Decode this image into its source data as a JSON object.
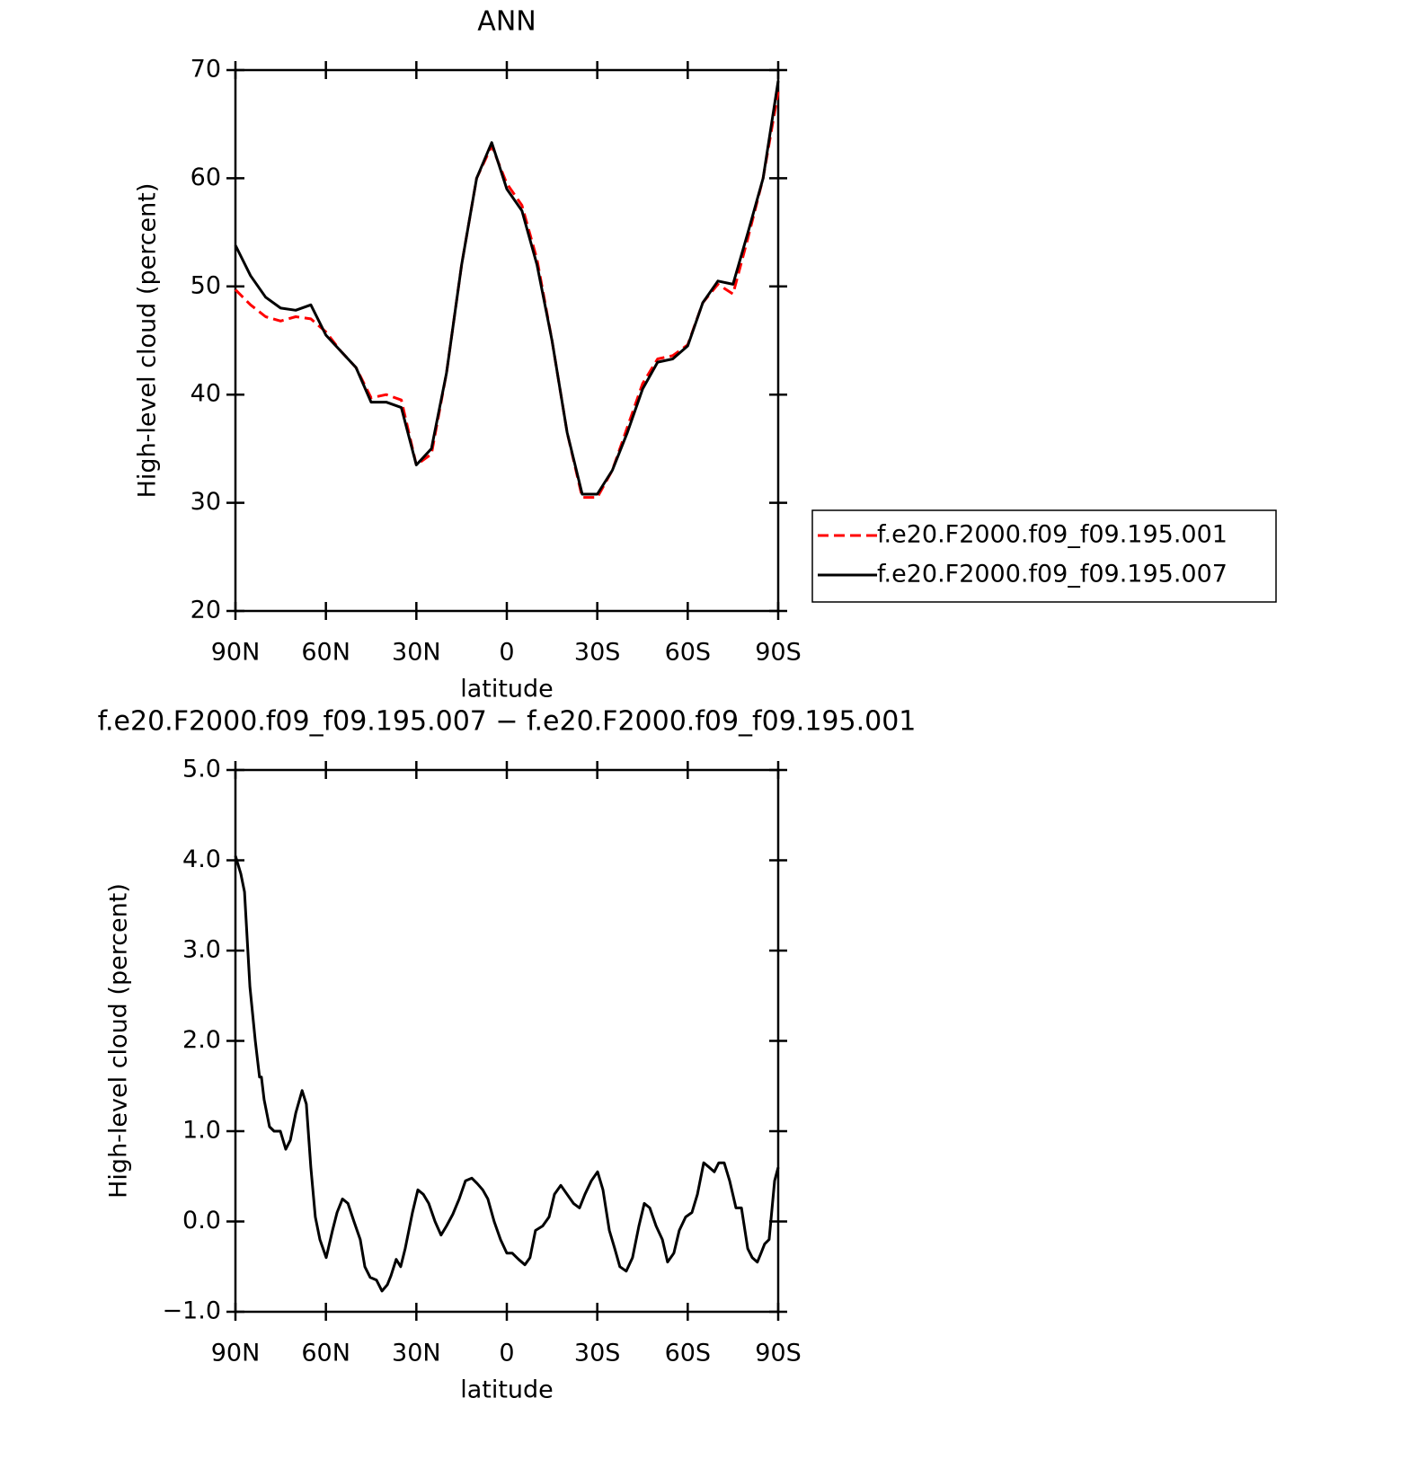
{
  "chart_data": [
    {
      "type": "line",
      "title": "ANN",
      "xlabel": "latitude",
      "ylabel": "High-level cloud (percent)",
      "x": [
        90,
        85,
        80,
        75,
        70,
        65,
        60,
        55,
        50,
        45,
        40,
        35,
        30,
        25,
        20,
        15,
        10,
        5,
        0,
        -5,
        -10,
        -15,
        -20,
        -25,
        -30,
        -35,
        -40,
        -45,
        -50,
        -55,
        -60,
        -65,
        -70,
        -75,
        -80,
        -85,
        -90
      ],
      "series": [
        {
          "name": "f.e20.F2000.f09_f09.195.001",
          "color": "#ff0000",
          "dash": true,
          "values": [
            49.7,
            48.3,
            47.2,
            46.8,
            47.2,
            47,
            45.8,
            44,
            42.5,
            39.7,
            40,
            39.5,
            33.5,
            34.5,
            42,
            52,
            60,
            63,
            59.5,
            57.5,
            52.5,
            45,
            36.5,
            30.5,
            30.5,
            33,
            37,
            41,
            43.3,
            43.6,
            44.6,
            48.5,
            50.2,
            49.3,
            54.5,
            60,
            68
          ]
        },
        {
          "name": "f.e20.F2000.f09_f09.195.007",
          "color": "#000000",
          "dash": false,
          "values": [
            53.8,
            51,
            49,
            48,
            47.8,
            48.3,
            45.5,
            44,
            42.5,
            39.3,
            39.3,
            38.8,
            33.5,
            35,
            42,
            52,
            60,
            63.3,
            59,
            57,
            52,
            45,
            36.5,
            30.8,
            30.8,
            33,
            36.5,
            40.5,
            43,
            43.3,
            44.5,
            48.5,
            50.5,
            50.2,
            55,
            60,
            69
          ]
        }
      ],
      "xlim": [
        90,
        -90
      ],
      "xticks": [
        {
          "value": 90,
          "label": "90N"
        },
        {
          "value": 60,
          "label": "60N"
        },
        {
          "value": 30,
          "label": "30N"
        },
        0,
        {
          "value": -30,
          "label": "30S"
        },
        {
          "value": -60,
          "label": "60S"
        },
        {
          "value": -90,
          "label": "90S"
        }
      ],
      "ylim": [
        20,
        70
      ],
      "yticks": [
        20,
        30,
        40,
        50,
        60,
        70
      ],
      "legend": "right"
    },
    {
      "type": "line",
      "title": "f.e20.F2000.f09_f09.195.007 − f.e20.F2000.f09_f09.195.001",
      "xlabel": "latitude",
      "ylabel": "High-level cloud (percent)",
      "x": [
        90,
        88.2,
        87,
        85.2,
        83.4,
        82,
        81.4,
        80.5,
        78.7,
        77.2,
        75.1,
        73.3,
        71.8,
        70,
        67.9,
        66.5,
        65,
        63.5,
        62,
        59.9,
        57.8,
        56.3,
        54.5,
        52.7,
        50.7,
        48.6,
        47.1,
        45.3,
        43.2,
        41.4,
        39.6,
        38.4,
        36.7,
        35.2,
        33.7,
        31.3,
        29.5,
        27.7,
        25.9,
        23.8,
        21.8,
        20,
        17.9,
        15.8,
        13.7,
        11.6,
        9.8,
        8,
        6.3,
        4.2,
        2.1,
        0,
        -1.8,
        -3.9,
        -6,
        -7.7,
        -9.5,
        -11.9,
        -14,
        -15.8,
        -17.9,
        -20,
        -22.1,
        -24.1,
        -25.9,
        -28,
        -30.1,
        -31.9,
        -34,
        -35.8,
        -37.5,
        -39.6,
        -41.7,
        -43.8,
        -45.6,
        -47.4,
        -49.5,
        -51.6,
        -53.3,
        -55.4,
        -57.2,
        -59.3,
        -61.4,
        -63.2,
        -65.3,
        -67.1,
        -68.8,
        -70.3,
        -72.1,
        -73.9,
        -76,
        -77.8,
        -79.9,
        -81.4,
        -83.1,
        -84.3,
        -85.5,
        -87,
        -88.8,
        -90
      ],
      "series": [
        {
          "color": "#000000",
          "dash": false,
          "values": [
            4.05,
            3.85,
            3.65,
            2.6,
            2,
            1.6,
            1.6,
            1.35,
            1.05,
            1,
            1,
            0.8,
            0.9,
            1.2,
            1.45,
            1.3,
            0.6,
            0.05,
            -0.2,
            -0.4,
            -0.1,
            0.1,
            0.25,
            0.2,
            0,
            -0.2,
            -0.5,
            -0.62,
            -0.65,
            -0.77,
            -0.7,
            -0.6,
            -0.42,
            -0.5,
            -0.3,
            0.1,
            0.35,
            0.3,
            0.2,
            0,
            -0.15,
            -0.05,
            0.08,
            0.25,
            0.45,
            0.48,
            0.42,
            0.35,
            0.25,
            0,
            -0.2,
            -0.35,
            -0.35,
            -0.42,
            -0.48,
            -0.4,
            -0.1,
            -0.05,
            0.05,
            0.3,
            0.4,
            0.3,
            0.2,
            0.15,
            0.3,
            0.45,
            0.55,
            0.35,
            -0.1,
            -0.3,
            -0.5,
            -0.55,
            -0.4,
            -0.05,
            0.2,
            0.15,
            -0.05,
            -0.2,
            -0.45,
            -0.35,
            -0.1,
            0.05,
            0.1,
            0.3,
            0.65,
            0.6,
            0.55,
            0.65,
            0.65,
            0.45,
            0.15,
            0.15,
            -0.3,
            -0.4,
            -0.45,
            -0.35,
            -0.25,
            -0.2,
            0.45,
            0.6
          ]
        }
      ],
      "xlim": [
        90,
        -90
      ],
      "xticks": [
        {
          "value": 90,
          "label": "90N"
        },
        {
          "value": 60,
          "label": "60N"
        },
        {
          "value": 30,
          "label": "30N"
        },
        0,
        {
          "value": -30,
          "label": "30S"
        },
        {
          "value": -60,
          "label": "60S"
        },
        {
          "value": -90,
          "label": "90S"
        }
      ],
      "ylim": [
        -1,
        5
      ],
      "yticks": [
        {
          "value": -1,
          "label": "−1.0"
        },
        {
          "value": 0,
          "label": "0.0"
        },
        {
          "value": 1,
          "label": "1.0"
        },
        {
          "value": 2,
          "label": "2.0"
        },
        {
          "value": 3,
          "label": "3.0"
        },
        {
          "value": 4,
          "label": "4.0"
        },
        {
          "value": 5,
          "label": "5.0"
        }
      ]
    }
  ]
}
